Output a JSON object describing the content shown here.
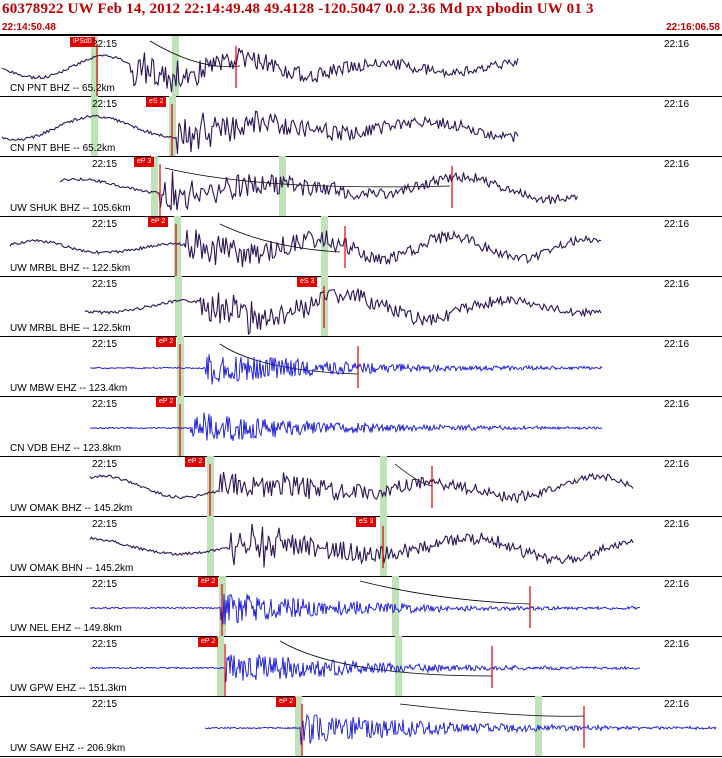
{
  "header": {
    "title": "60378922 UW Feb 14, 2012 22:14:49.48   49.4128 -120.5047  0.0 2.36 Md px pbodin UW 01   3",
    "start_time": "22:14:50.48",
    "end_time": "22:16:06.58"
  },
  "colors": {
    "header_red": "#c00000",
    "pick_red": "#e00000",
    "trace_purple": "#2e1553",
    "trace_blue": "#1515d8",
    "window_green": "#bfe2b8"
  },
  "channels": [
    {
      "label": "CN PNT BHZ -- 65.2km",
      "tick_left": "22:15",
      "tick_right": "22:16",
      "pick": "iPSd0",
      "color": "purple",
      "type": "lp"
    },
    {
      "label": "CN PNT BHE -- 65.2km",
      "tick_left": "22:15",
      "tick_right": "22:16",
      "pick": "eS 2",
      "color": "purple",
      "type": "lp"
    },
    {
      "label": "UW SHUK BHZ -- 105.6km",
      "tick_left": "22:15",
      "tick_right": "22:16",
      "pick": "eP 3",
      "color": "purple",
      "type": "lp"
    },
    {
      "label": "UW MRBL BHZ -- 122.5km",
      "tick_left": "22:15",
      "tick_right": "22:16",
      "pick": "eP 2",
      "color": "purple",
      "type": "lp"
    },
    {
      "label": "UW MRBL BHE -- 122.5km",
      "tick_left": "22:15",
      "tick_right": "22:16",
      "pick": "eS 3",
      "color": "purple",
      "type": "lp"
    },
    {
      "label": "UW MBW EHZ -- 123.4km",
      "tick_left": "22:15",
      "tick_right": "22:16",
      "pick": "eP 2",
      "color": "blue",
      "type": "hf"
    },
    {
      "label": "CN VDB EHZ -- 123.8km",
      "tick_left": "22:15",
      "tick_right": "22:16",
      "pick": "eP 2",
      "color": "blue",
      "type": "hf"
    },
    {
      "label": "UW OMAK BHZ -- 145.2km",
      "tick_left": "22:15",
      "tick_right": "22:16",
      "pick": "eP 2",
      "color": "purple",
      "type": "lp"
    },
    {
      "label": "UW OMAK BHN -- 145.2km",
      "tick_left": "22:15",
      "tick_right": "22:16",
      "pick": "eS 3",
      "color": "purple",
      "type": "lp"
    },
    {
      "label": "UW NEL EHZ -- 149.8km",
      "tick_left": "22:15",
      "tick_right": "22:16",
      "pick": "eP 2",
      "color": "blue",
      "type": "hf"
    },
    {
      "label": "UW GPW EHZ -- 151.3km",
      "tick_left": "22:15",
      "tick_right": "22:16",
      "pick": "eP 2",
      "color": "blue",
      "type": "hf"
    },
    {
      "label": "UW SAW EHZ -- 206.9km",
      "tick_left": "22:15",
      "tick_right": "22:16",
      "pick": "eP 2",
      "color": "blue",
      "type": "hf"
    }
  ]
}
